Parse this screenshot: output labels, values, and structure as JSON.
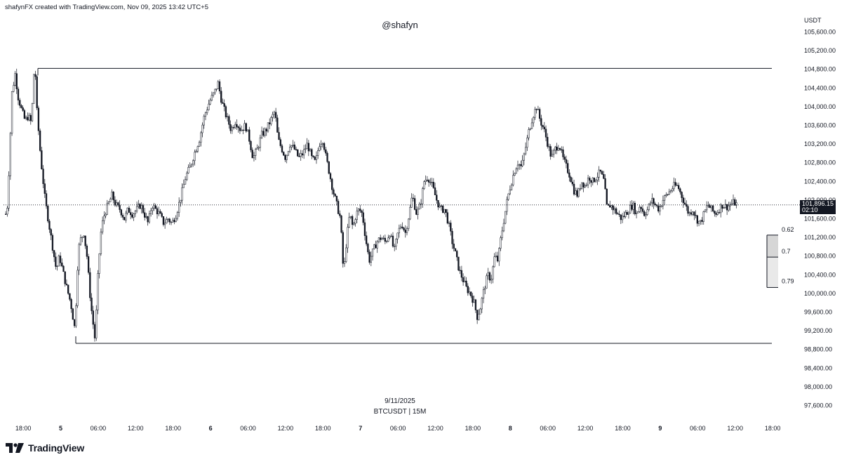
{
  "header_text": "shafynFX created with TradingView.com, Nov 09, 2025 13:42 UTC+5",
  "watermark": "@shafyn",
  "date_label": "9/11/2025",
  "symbol_label": "BTCUSDT | 15M",
  "brand": {
    "name": "TradingView",
    "logo_icon": "tradingview-logo-icon"
  },
  "colors": {
    "candle": "#131722",
    "background": "#ffffff",
    "fib_light": "#e9e9e9",
    "fib_dark": "#d6d6d6"
  },
  "chart_data": {
    "type": "candlestick",
    "symbol": "BTCUSDT",
    "timeframe": "15M",
    "currency": "USDT",
    "ylim": [
      97400,
      105900
    ],
    "y_ticks": [
      "105,600.00",
      "105,200.00",
      "104,800.00",
      "104,400.00",
      "104,000.00",
      "103,600.00",
      "103,200.00",
      "102,800.00",
      "102,400.00",
      "102,000.00",
      "101,600.00",
      "101,200.00",
      "100,800.00",
      "100,400.00",
      "100,000.00",
      "99,600.00",
      "99,200.00",
      "98,800.00",
      "98,400.00",
      "98,000.00",
      "97,600.00"
    ],
    "y_tick_values": [
      105600,
      105200,
      104800,
      104400,
      104000,
      103600,
      103200,
      102800,
      102400,
      102000,
      101600,
      101200,
      100800,
      100400,
      100000,
      99600,
      99200,
      98800,
      98400,
      98000,
      97600
    ],
    "x_ticks": [
      {
        "label": "18:00",
        "hours": -6,
        "bold": false
      },
      {
        "label": "5",
        "hours": 0,
        "bold": true
      },
      {
        "label": "06:00",
        "hours": 6,
        "bold": false
      },
      {
        "label": "12:00",
        "hours": 12,
        "bold": false
      },
      {
        "label": "18:00",
        "hours": 18,
        "bold": false
      },
      {
        "label": "6",
        "hours": 24,
        "bold": true
      },
      {
        "label": "06:00",
        "hours": 30,
        "bold": false
      },
      {
        "label": "12:00",
        "hours": 36,
        "bold": false
      },
      {
        "label": "18:00",
        "hours": 42,
        "bold": false
      },
      {
        "label": "7",
        "hours": 48,
        "bold": true
      },
      {
        "label": "06:00",
        "hours": 54,
        "bold": false
      },
      {
        "label": "12:00",
        "hours": 60,
        "bold": false
      },
      {
        "label": "18:00",
        "hours": 66,
        "bold": false
      },
      {
        "label": "8",
        "hours": 72,
        "bold": true
      },
      {
        "label": "06:00",
        "hours": 78,
        "bold": false
      },
      {
        "label": "12:00",
        "hours": 84,
        "bold": false
      },
      {
        "label": "18:00",
        "hours": 90,
        "bold": false
      },
      {
        "label": "9",
        "hours": 96,
        "bold": true
      },
      {
        "label": "06:00",
        "hours": 102,
        "bold": false
      },
      {
        "label": "12:00",
        "hours": 108,
        "bold": false
      },
      {
        "label": "18:00",
        "hours": 114,
        "bold": false
      }
    ],
    "current_price": {
      "value": 101896.15,
      "label": "101,896.15",
      "countdown": "02:10"
    },
    "range": {
      "high": 104820,
      "low": 98930
    },
    "fib_levels": [
      {
        "label": "0.62",
        "value": 101249
      },
      {
        "label": "0.7",
        "value": 100778
      },
      {
        "label": "0.79",
        "value": 100248
      }
    ],
    "price_path": [
      [
        -8.8,
        101700
      ],
      [
        -8.5,
        101900
      ],
      [
        -7.8,
        104300
      ],
      [
        -7.3,
        104700
      ],
      [
        -6.8,
        104200
      ],
      [
        -6.2,
        103900
      ],
      [
        -5.7,
        103700
      ],
      [
        -5.2,
        103800
      ],
      [
        -4.7,
        103650
      ],
      [
        -4.3,
        104700
      ],
      [
        -4.0,
        104650
      ],
      [
        -3.8,
        103900
      ],
      [
        -3.2,
        102900
      ],
      [
        -2.5,
        102000
      ],
      [
        -1.9,
        101500
      ],
      [
        -1.3,
        101000
      ],
      [
        -0.7,
        100500
      ],
      [
        -0.2,
        100800
      ],
      [
        0.3,
        100500
      ],
      [
        1.0,
        100100
      ],
      [
        1.6,
        99800
      ],
      [
        2.3,
        99200
      ],
      [
        2.6,
        100400
      ],
      [
        3.0,
        101100
      ],
      [
        3.7,
        101300
      ],
      [
        4.2,
        100800
      ],
      [
        4.8,
        99800
      ],
      [
        5.5,
        99000
      ],
      [
        6.0,
        100500
      ],
      [
        6.5,
        101400
      ],
      [
        7.0,
        101700
      ],
      [
        7.6,
        101900
      ],
      [
        8.2,
        102100
      ],
      [
        8.8,
        101900
      ],
      [
        9.5,
        101800
      ],
      [
        10.2,
        101600
      ],
      [
        10.8,
        101800
      ],
      [
        11.5,
        101700
      ],
      [
        12.2,
        101800
      ],
      [
        12.8,
        101900
      ],
      [
        13.4,
        101700
      ],
      [
        14.0,
        101500
      ],
      [
        14.6,
        101900
      ],
      [
        15.2,
        101800
      ],
      [
        15.8,
        101700
      ],
      [
        16.5,
        101500
      ],
      [
        17.2,
        101600
      ],
      [
        17.8,
        101500
      ],
      [
        18.5,
        101700
      ],
      [
        19.3,
        102100
      ],
      [
        20.0,
        102500
      ],
      [
        20.7,
        102700
      ],
      [
        21.4,
        103000
      ],
      [
        22.2,
        103300
      ],
      [
        23.0,
        103800
      ],
      [
        23.8,
        104100
      ],
      [
        24.6,
        104300
      ],
      [
        25.2,
        104500
      ],
      [
        25.8,
        104100
      ],
      [
        26.5,
        103800
      ],
      [
        27.3,
        103500
      ],
      [
        28.0,
        103700
      ],
      [
        28.8,
        103500
      ],
      [
        29.6,
        103600
      ],
      [
        30.2,
        103300
      ],
      [
        30.8,
        102900
      ],
      [
        31.5,
        103100
      ],
      [
        32.2,
        103400
      ],
      [
        32.9,
        103500
      ],
      [
        33.6,
        103700
      ],
      [
        34.3,
        103900
      ],
      [
        34.8,
        103300
      ],
      [
        35.4,
        103100
      ],
      [
        36.0,
        102900
      ],
      [
        36.7,
        103200
      ],
      [
        37.4,
        103100
      ],
      [
        38.1,
        102900
      ],
      [
        38.8,
        103000
      ],
      [
        39.5,
        103200
      ],
      [
        40.2,
        102900
      ],
      [
        40.8,
        102800
      ],
      [
        41.4,
        103200
      ],
      [
        42.0,
        103300
      ],
      [
        42.5,
        102900
      ],
      [
        43.0,
        102600
      ],
      [
        43.6,
        102200
      ],
      [
        44.2,
        101900
      ],
      [
        44.8,
        101600
      ],
      [
        45.3,
        100400
      ],
      [
        45.8,
        101200
      ],
      [
        46.3,
        101700
      ],
      [
        46.8,
        101400
      ],
      [
        47.3,
        101700
      ],
      [
        47.8,
        101800
      ],
      [
        48.3,
        101700
      ],
      [
        48.8,
        101200
      ],
      [
        49.4,
        100700
      ],
      [
        50.0,
        100900
      ],
      [
        50.6,
        101100
      ],
      [
        51.3,
        101200
      ],
      [
        52.0,
        101100
      ],
      [
        52.7,
        101300
      ],
      [
        53.4,
        100900
      ],
      [
        54.0,
        101300
      ],
      [
        54.6,
        101500
      ],
      [
        55.2,
        101300
      ],
      [
        55.8,
        101700
      ],
      [
        56.3,
        102100
      ],
      [
        57.0,
        101700
      ],
      [
        57.6,
        101900
      ],
      [
        58.2,
        102400
      ],
      [
        58.8,
        102500
      ],
      [
        59.5,
        102300
      ],
      [
        60.2,
        102000
      ],
      [
        60.8,
        101800
      ],
      [
        61.5,
        101800
      ],
      [
        62.1,
        101500
      ],
      [
        62.7,
        101100
      ],
      [
        63.3,
        100800
      ],
      [
        63.8,
        100500
      ],
      [
        64.4,
        100300
      ],
      [
        65.0,
        100100
      ],
      [
        65.6,
        100000
      ],
      [
        66.2,
        99800
      ],
      [
        66.7,
        99500
      ],
      [
        67.2,
        99700
      ],
      [
        67.8,
        100100
      ],
      [
        68.4,
        100400
      ],
      [
        68.9,
        100300
      ],
      [
        69.5,
        100800
      ],
      [
        70.0,
        100700
      ],
      [
        70.5,
        101200
      ],
      [
        71.0,
        101600
      ],
      [
        71.5,
        102000
      ],
      [
        72.0,
        102300
      ],
      [
        72.6,
        102600
      ],
      [
        73.2,
        102800
      ],
      [
        73.8,
        102700
      ],
      [
        74.4,
        103100
      ],
      [
        75.0,
        103500
      ],
      [
        75.6,
        103800
      ],
      [
        76.2,
        104000
      ],
      [
        76.8,
        103700
      ],
      [
        77.4,
        103500
      ],
      [
        78.0,
        103200
      ],
      [
        78.6,
        102900
      ],
      [
        79.2,
        103100
      ],
      [
        79.8,
        103200
      ],
      [
        80.4,
        102900
      ],
      [
        81.0,
        102700
      ],
      [
        81.6,
        102500
      ],
      [
        82.2,
        102200
      ],
      [
        82.8,
        102100
      ],
      [
        83.4,
        102400
      ],
      [
        84.0,
        102300
      ],
      [
        84.6,
        102500
      ],
      [
        85.2,
        102400
      ],
      [
        85.8,
        102500
      ],
      [
        86.4,
        102600
      ],
      [
        87.0,
        102400
      ],
      [
        87.5,
        101800
      ],
      [
        88.0,
        101900
      ],
      [
        88.6,
        101800
      ],
      [
        89.2,
        101700
      ],
      [
        89.8,
        101600
      ],
      [
        90.4,
        101700
      ],
      [
        91.0,
        101800
      ],
      [
        91.6,
        101900
      ],
      [
        92.2,
        101700
      ],
      [
        92.8,
        101900
      ],
      [
        93.4,
        101700
      ],
      [
        94.0,
        101800
      ],
      [
        94.6,
        102000
      ],
      [
        95.2,
        101900
      ],
      [
        95.8,
        101800
      ],
      [
        96.4,
        102000
      ],
      [
        97.0,
        102100
      ],
      [
        97.6,
        102200
      ],
      [
        98.2,
        102300
      ],
      [
        98.8,
        102300
      ],
      [
        99.4,
        102100
      ],
      [
        100.0,
        101900
      ],
      [
        100.6,
        101700
      ],
      [
        101.2,
        101800
      ],
      [
        101.8,
        101600
      ],
      [
        102.4,
        101500
      ],
      [
        103.0,
        101700
      ],
      [
        103.6,
        101900
      ],
      [
        104.2,
        101800
      ],
      [
        104.8,
        101700
      ],
      [
        105.4,
        101800
      ],
      [
        106.0,
        101900
      ],
      [
        106.6,
        101850
      ],
      [
        107.2,
        101900
      ],
      [
        107.8,
        101950
      ],
      [
        108.4,
        101896
      ]
    ]
  }
}
